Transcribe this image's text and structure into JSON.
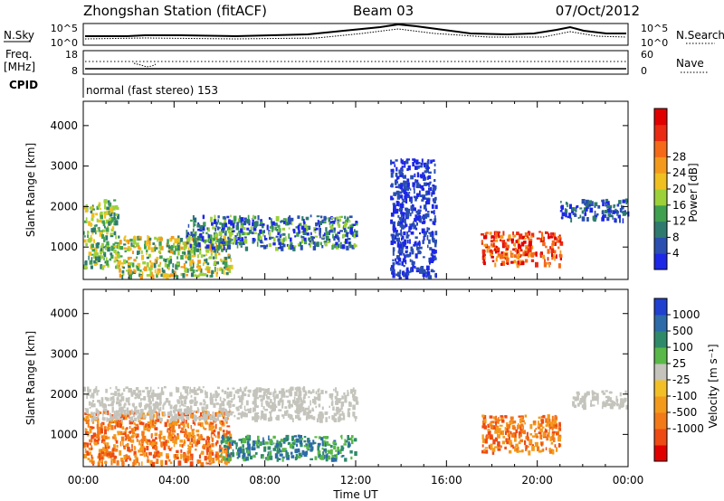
{
  "header": {
    "station": "Zhongshan Station (fitACF)",
    "beam": "Beam 03",
    "date": "07/Oct/2012"
  },
  "noise_panel": {
    "left_label": "N.Sky",
    "right_label": "N.Search",
    "left_ticks": [
      "10^5",
      "10^0"
    ],
    "right_ticks": [
      "10^5",
      "10^0"
    ]
  },
  "freq_panel": {
    "left_label_1": "Freq.",
    "left_label_2": "[MHz]",
    "right_label": "Nave",
    "left_ticks": [
      "18",
      "8"
    ],
    "right_ticks": [
      "60",
      "0"
    ]
  },
  "cpid": {
    "label": "CPID",
    "mode": "normal (fast stereo) 153"
  },
  "axes": {
    "y_label": "Slant Range [km]",
    "x_label": "Time UT",
    "y_ticks": [
      "1000",
      "2000",
      "3000",
      "4000"
    ],
    "x_ticks": [
      "00:00",
      "04:00",
      "08:00",
      "12:00",
      "16:00",
      "20:00",
      "00:00"
    ]
  },
  "colorbars": {
    "power": {
      "label": "Power [dB]",
      "ticks": [
        "4",
        "8",
        "12",
        "16",
        "20",
        "24",
        "28"
      ],
      "colors": [
        "#1d27e6",
        "#2a4fb0",
        "#2f7a6e",
        "#3fa04f",
        "#9cd13a",
        "#f0c020",
        "#f39a1d",
        "#f56a18",
        "#ea2a12",
        "#e00000"
      ]
    },
    "velocity": {
      "label": "Velocity [m s⁻¹]",
      "ticks": [
        "1000",
        "500",
        "100",
        "25",
        "-25",
        "-100",
        "-500",
        "-1000"
      ],
      "colors": [
        "#2040d0",
        "#2c6aa8",
        "#2f8a6a",
        "#59b848",
        "#c4c4bc",
        "#f2c026",
        "#f39a1d",
        "#f37a18",
        "#ee4a14",
        "#e00000"
      ]
    }
  },
  "chart_data": [
    {
      "type": "heatmap",
      "title": "Power",
      "xlabel": "Time UT",
      "ylabel": "Slant Range [km]",
      "xlim": [
        0,
        24
      ],
      "ylim": [
        200,
        4600
      ],
      "colorbar": {
        "label": "Power [dB]",
        "range": [
          0,
          32
        ]
      },
      "echo_regions": [
        {
          "t": [
            0.0,
            1.5
          ],
          "range": [
            500,
            2200
          ],
          "level": "8-20 dB"
        },
        {
          "t": [
            1.5,
            6.5
          ],
          "range": [
            300,
            1300
          ],
          "level": "8-24 dB"
        },
        {
          "t": [
            4.5,
            12.0
          ],
          "range": [
            1000,
            1800
          ],
          "level": "4-20 dB"
        },
        {
          "t": [
            13.5,
            15.5
          ],
          "range": [
            300,
            3200
          ],
          "level": "4-8 dB"
        },
        {
          "t": [
            17.5,
            21.0
          ],
          "range": [
            600,
            1400
          ],
          "level": "20-32 dB"
        },
        {
          "t": [
            21.0,
            24.0
          ],
          "range": [
            1700,
            2200
          ],
          "level": "4-12 dB"
        }
      ]
    },
    {
      "type": "heatmap",
      "title": "Velocity",
      "xlabel": "Time UT",
      "ylabel": "Slant Range [km]",
      "xlim": [
        0,
        24
      ],
      "ylim": [
        200,
        4600
      ],
      "colorbar": {
        "label": "Velocity [m s⁻¹]",
        "range": [
          -1000,
          1000
        ]
      },
      "echo_regions": [
        {
          "t": [
            0.0,
            6.5
          ],
          "range": [
            300,
            1600
          ],
          "velocity": "-100 to -500"
        },
        {
          "t": [
            0.0,
            12.0
          ],
          "range": [
            1400,
            2200
          ],
          "velocity": "-25 to 25"
        },
        {
          "t": [
            6.0,
            12.0
          ],
          "range": [
            400,
            1000
          ],
          "velocity": "25 to 500"
        },
        {
          "t": [
            17.5,
            21.0
          ],
          "range": [
            600,
            1500
          ],
          "velocity": "-100 to -500"
        },
        {
          "t": [
            21.5,
            24.0
          ],
          "range": [
            1700,
            2100
          ],
          "velocity": "-25 to 25"
        }
      ]
    }
  ]
}
